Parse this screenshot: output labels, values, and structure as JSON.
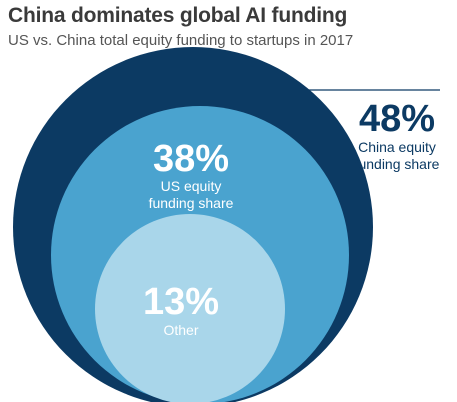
{
  "header": {
    "title": "China dominates global AI funding",
    "subtitle": "US vs. China total equity funding to startups in 2017"
  },
  "chart_data": {
    "type": "nested-circles",
    "title": "China dominates global AI funding",
    "subtitle": "US vs. China total equity funding to startups in 2017",
    "series": [
      {
        "name": "China equity funding share",
        "value": 48,
        "unit": "%",
        "value_label": "48%",
        "label_lines": [
          "China equity",
          "funding share"
        ],
        "color": "#0c3a63"
      },
      {
        "name": "US equity funding share",
        "value": 38,
        "unit": "%",
        "value_label": "38%",
        "label_lines": [
          "US equity",
          "funding share"
        ],
        "color": "#4aa3cf"
      },
      {
        "name": "Other",
        "value": 13,
        "unit": "%",
        "value_label": "13%",
        "label_lines": [
          "Other"
        ],
        "color": "#a9d6ea"
      }
    ]
  }
}
